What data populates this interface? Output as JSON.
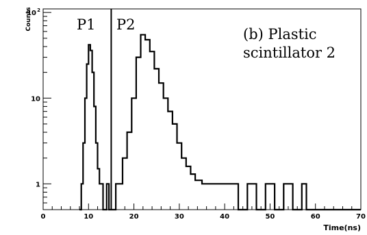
{
  "chart_data": {
    "type": "line",
    "style": "histogram",
    "log_y": true,
    "xlim": [
      0,
      70
    ],
    "ylim": [
      0.5,
      110
    ],
    "xlabel": "Time(ns)",
    "ylabel": "Counts",
    "x_ticks": [
      "0",
      "10",
      "20",
      "30",
      "40",
      "50",
      "60",
      "70"
    ],
    "y_ticks": [
      {
        "value": 1,
        "label": "1"
      },
      {
        "value": 10,
        "label": "10"
      },
      {
        "value": 100,
        "label": "10",
        "sup": "2"
      }
    ],
    "grid": false,
    "annotations": {
      "p1": "P1",
      "p2": "P2",
      "caption_line1": "(b) Plastic",
      "caption_line2": "scintillator 2"
    },
    "divider_x": 15,
    "series": [
      {
        "points": [
          [
            8,
            0.5
          ],
          [
            8.4,
            1
          ],
          [
            8.8,
            3
          ],
          [
            9.2,
            10
          ],
          [
            9.6,
            25
          ],
          [
            10,
            42
          ],
          [
            10.4,
            36
          ],
          [
            10.8,
            20
          ],
          [
            11.2,
            8
          ],
          [
            11.6,
            3
          ],
          [
            12,
            1.5
          ],
          [
            12.4,
            1
          ],
          [
            12.8,
            1
          ],
          [
            13.2,
            0.5
          ],
          [
            14,
            1
          ],
          [
            14.5,
            0.5
          ],
          [
            16,
            1
          ],
          [
            16.8,
            1
          ],
          [
            17.5,
            2
          ],
          [
            18.5,
            4
          ],
          [
            19.5,
            10
          ],
          [
            20.5,
            30
          ],
          [
            21.5,
            55
          ],
          [
            22.5,
            48
          ],
          [
            23.5,
            35
          ],
          [
            24.5,
            22
          ],
          [
            25.5,
            15
          ],
          [
            26.5,
            10
          ],
          [
            27.5,
            7
          ],
          [
            28.5,
            5
          ],
          [
            29.5,
            3
          ],
          [
            30.5,
            2
          ],
          [
            31.5,
            1.6
          ],
          [
            32.5,
            1.3
          ],
          [
            33.5,
            1.1
          ],
          [
            35,
            1
          ],
          [
            37,
            1
          ],
          [
            39,
            1
          ],
          [
            41,
            1
          ],
          [
            43,
            0.5
          ],
          [
            45,
            1
          ],
          [
            47,
            0.5
          ],
          [
            49,
            1
          ],
          [
            51,
            0.5
          ],
          [
            53,
            1
          ],
          [
            55,
            0.5
          ],
          [
            57,
            1
          ],
          [
            58,
            0.5
          ],
          [
            70,
            0.5
          ]
        ]
      }
    ]
  }
}
